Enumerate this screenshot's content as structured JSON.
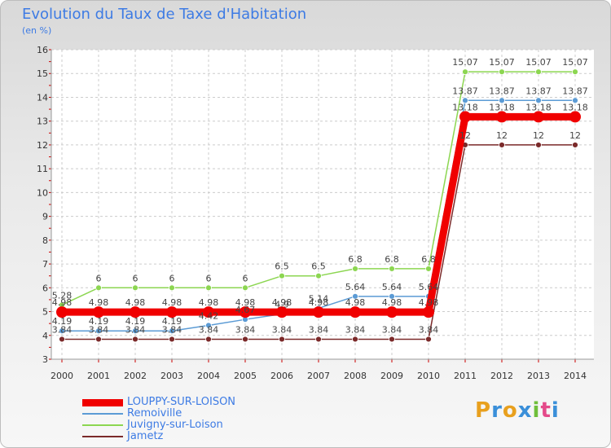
{
  "header": {
    "title": "Evolution du Taux de Taxe d'Habitation",
    "subtitle": "(en %)"
  },
  "logo": {
    "text": "Proxiti",
    "colors": [
      "#e8a01e",
      "#3a8fd9",
      "#e8a01e",
      "#3a8fd9",
      "#6fbf3b",
      "#e44a8a",
      "#3a8fd9"
    ]
  },
  "chart_data": {
    "type": "line",
    "x": [
      "2000",
      "2001",
      "2002",
      "2003",
      "2004",
      "2005",
      "2006",
      "2007",
      "2008",
      "2009",
      "2010",
      "2011",
      "2012",
      "2013",
      "2014"
    ],
    "ylim": [
      3,
      16
    ],
    "yticks": [
      "3",
      "4",
      "5",
      "6",
      "7",
      "8",
      "9",
      "10",
      "11",
      "12",
      "13",
      "14",
      "15",
      "16"
    ],
    "grid": true,
    "legend_position": "bottom-left",
    "series": [
      {
        "name": "LOUPPY-SUR-LOISON",
        "color": "#f00000",
        "values": [
          4.98,
          4.98,
          4.98,
          4.98,
          4.98,
          4.98,
          4.98,
          4.98,
          4.98,
          4.98,
          4.98,
          13.18,
          13.18,
          13.18,
          13.18
        ],
        "labels": [
          "4.98",
          "4.98",
          "4.98",
          "4.98",
          "4.98",
          "4.98",
          "4.98",
          "4.98",
          "4.98",
          "4.98",
          "4.98",
          "13.18",
          "13.18",
          "13.18",
          "13.18"
        ]
      },
      {
        "name": "Remoiville",
        "color": "#5b9bd5",
        "values": [
          4.19,
          4.19,
          4.19,
          4.19,
          4.42,
          4.67,
          4.9,
          5.14,
          5.64,
          5.64,
          5.64,
          13.87,
          13.87,
          13.87,
          13.87
        ],
        "labels": [
          "4.19",
          "4.19",
          "4.19",
          "4.19",
          "4.42",
          "4.67",
          "4.9",
          "5.14",
          "5.64",
          "5.64",
          "5.64",
          "13.87",
          "13.87",
          "13.87",
          "13.87"
        ]
      },
      {
        "name": "Juvigny-sur-Loison",
        "color": "#8cd651",
        "values": [
          5.28,
          6,
          6,
          6,
          6,
          6,
          6.5,
          6.5,
          6.8,
          6.8,
          6.8,
          15.07,
          15.07,
          15.07,
          15.07
        ],
        "labels": [
          "5.28",
          "6",
          "6",
          "6",
          "6",
          "6",
          "6.5",
          "6.5",
          "6.8",
          "6.8",
          "6.8",
          "15.07",
          "15.07",
          "15.07",
          "15.07"
        ]
      },
      {
        "name": "Jametz",
        "color": "#7b2a2a",
        "values": [
          3.84,
          3.84,
          3.84,
          3.84,
          3.84,
          3.84,
          3.84,
          3.84,
          3.84,
          3.84,
          3.84,
          12,
          12,
          12,
          12
        ],
        "labels": [
          "3.84",
          "3.84",
          "3.84",
          "3.84",
          "3.84",
          "3.84",
          "3.84",
          "3.84",
          "3.84",
          "3.84",
          "3.84",
          "12",
          "12",
          "12",
          "12"
        ]
      }
    ]
  }
}
